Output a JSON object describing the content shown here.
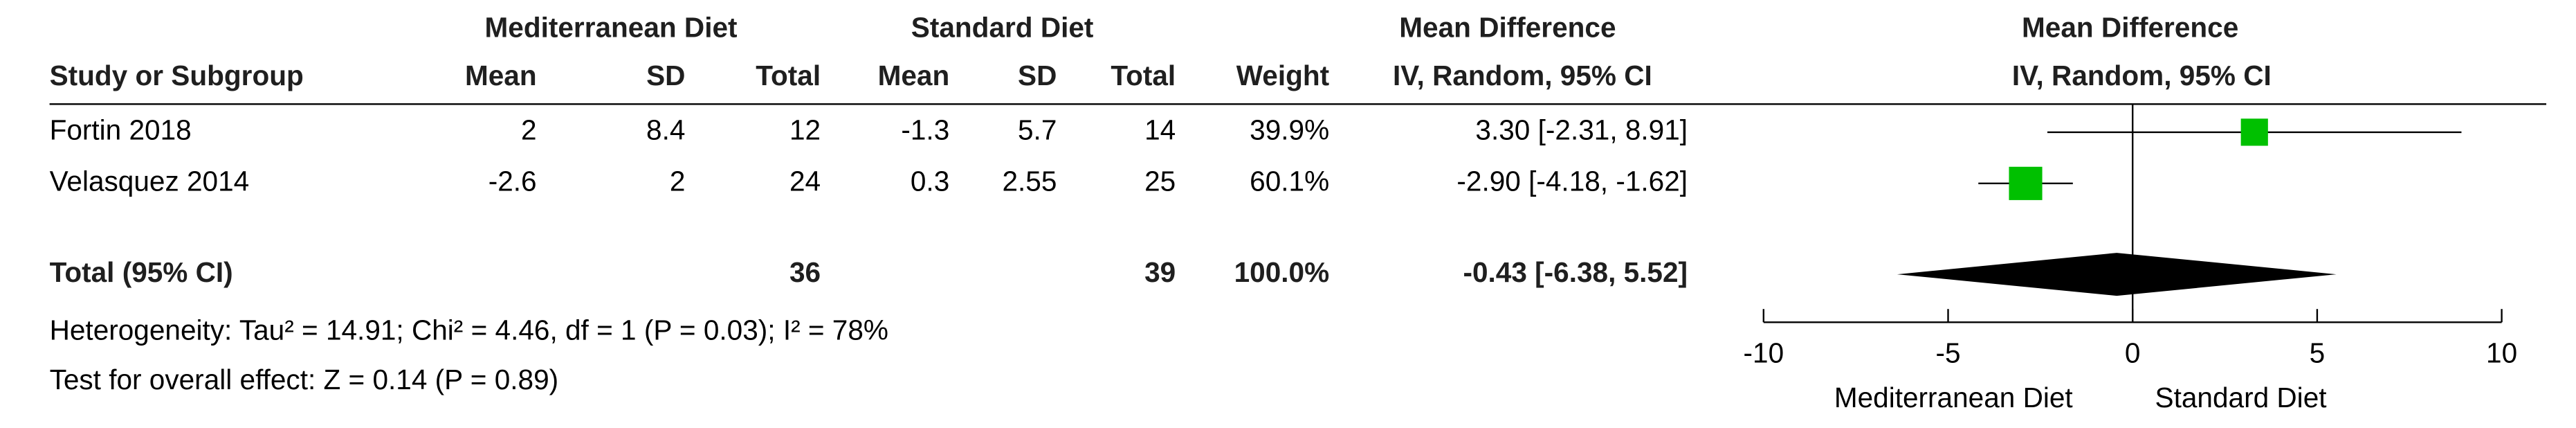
{
  "header": {
    "group1": "Mediterranean Diet",
    "group2": "Standard Diet",
    "effect": "Mean Difference",
    "plot_effect": "Mean Difference"
  },
  "columns": [
    "Study or Subgroup",
    "Mean",
    "SD",
    "Total",
    "Mean",
    "SD",
    "Total",
    "Weight",
    "IV, Random, 95% CI"
  ],
  "plot_method": "IV, Random, 95% CI",
  "studies": [
    {
      "name": "Fortin 2018",
      "mean1": 2,
      "sd1": 8.4,
      "n1": 12,
      "mean2": -1.3,
      "sd2": 5.7,
      "n2": 14,
      "weight": 39.9,
      "weight_label": "39.9%",
      "md": 3.3,
      "lo": -2.31,
      "hi": 8.91,
      "ci_label": "3.30 [-2.31, 8.91]"
    },
    {
      "name": "Velasquez 2014",
      "mean1": -2.6,
      "sd1": 2,
      "n1": 24,
      "mean2": 0.3,
      "sd2": 2.55,
      "n2": 25,
      "weight": 60.1,
      "weight_label": "60.1%",
      "md": -2.9,
      "lo": -4.18,
      "hi": -1.62,
      "ci_label": "-2.90 [-4.18, -1.62]"
    }
  ],
  "total": {
    "name": "Total (95% CI)",
    "n1": 36,
    "n2": 39,
    "weight": 100,
    "weight_label": "100.0%",
    "md": -0.43,
    "lo": -6.38,
    "hi": 5.52,
    "ci_label": "-0.43 [-6.38, 5.52]"
  },
  "heterogeneity": "Heterogeneity: Tau² = 14.91; Chi² = 4.46, df = 1 (P = 0.03); I² = 78%",
  "overall": "Test for overall effect: Z = 0.14 (P = 0.89)",
  "plot": {
    "xlim": [
      -10,
      10
    ],
    "xticks": [
      -10,
      -5,
      0,
      5,
      10
    ],
    "favours_left": "Mediterranean Diet",
    "favours_right": "Standard Diet",
    "square_color": "#00c000",
    "diamond_color": "#000000"
  }
}
